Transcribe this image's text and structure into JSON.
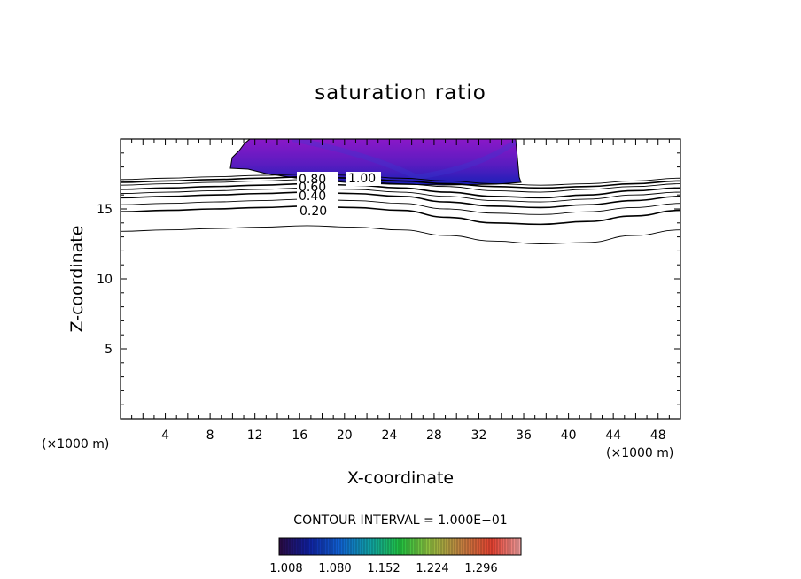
{
  "chart_data": {
    "type": "contour",
    "title": "saturation ratio",
    "xlabel": "X-coordinate",
    "ylabel": "Z-coordinate",
    "x_unit_label": "(×1000 m)",
    "x_unit_label_left": "(×1000 m)",
    "xlim": [
      0,
      50
    ],
    "ylim": [
      0,
      20
    ],
    "xticks": [
      4,
      8,
      12,
      16,
      20,
      24,
      28,
      32,
      36,
      40,
      44,
      48
    ],
    "yticks": [
      5,
      10,
      15
    ],
    "contour_interval_text": "CONTOUR INTERVAL = 1.000E−01",
    "contour_labels": [
      "0.80",
      "1.00",
      "0.60",
      "0.40",
      "0.20"
    ],
    "colorbar": {
      "ticks": [
        "1.008",
        "1.080",
        "1.152",
        "1.224",
        "1.296"
      ],
      "colors": [
        "#2a1060",
        "#1030c0",
        "#20c060",
        "#a0c040",
        "#e03020"
      ]
    },
    "contours": [
      {
        "level": 0.1,
        "z": [
          13.4,
          13.5,
          13.6,
          13.7,
          13.8,
          13.7,
          13.5,
          13.1,
          12.7,
          12.5,
          12.6,
          13.1,
          13.5
        ]
      },
      {
        "level": 0.2,
        "z": [
          14.8,
          14.9,
          15.0,
          15.1,
          15.2,
          15.1,
          14.9,
          14.4,
          14.0,
          13.9,
          14.1,
          14.5,
          14.9
        ]
      },
      {
        "level": 0.3,
        "z": [
          15.3,
          15.4,
          15.5,
          15.6,
          15.7,
          15.6,
          15.4,
          15.0,
          14.7,
          14.6,
          14.8,
          15.1,
          15.4
        ]
      },
      {
        "level": 0.4,
        "z": [
          15.8,
          15.9,
          16.0,
          16.1,
          16.2,
          16.1,
          15.9,
          15.5,
          15.2,
          15.1,
          15.3,
          15.6,
          15.9
        ]
      },
      {
        "level": 0.5,
        "z": [
          16.1,
          16.2,
          16.3,
          16.4,
          16.5,
          16.4,
          16.2,
          15.9,
          15.6,
          15.5,
          15.7,
          16.0,
          16.2
        ]
      },
      {
        "level": 0.6,
        "z": [
          16.4,
          16.5,
          16.6,
          16.7,
          16.8,
          16.7,
          16.5,
          16.2,
          15.9,
          15.8,
          16.0,
          16.3,
          16.5
        ]
      },
      {
        "level": 0.7,
        "z": [
          16.7,
          16.8,
          16.9,
          17.0,
          17.1,
          17.0,
          16.8,
          16.6,
          16.3,
          16.2,
          16.4,
          16.6,
          16.8
        ]
      },
      {
        "level": 0.8,
        "z": [
          16.9,
          17.0,
          17.1,
          17.2,
          17.3,
          17.2,
          17.0,
          16.8,
          16.6,
          16.5,
          16.6,
          16.8,
          17.0
        ]
      },
      {
        "level": 0.9,
        "z": [
          17.1,
          17.2,
          17.3,
          17.4,
          17.5,
          17.4,
          17.2,
          17.0,
          16.8,
          16.7,
          16.8,
          17.0,
          17.2
        ]
      }
    ]
  }
}
